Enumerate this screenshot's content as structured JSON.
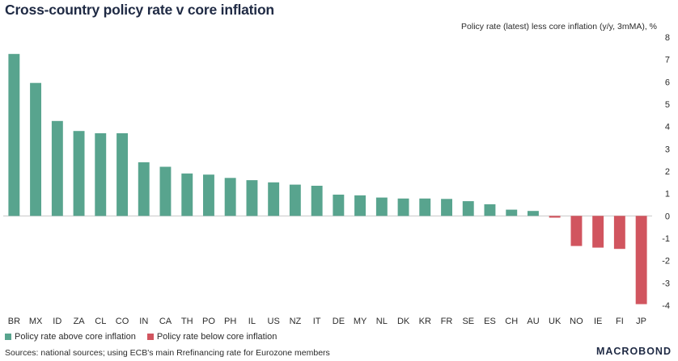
{
  "header": {
    "title": "Cross-country policy rate v core inflation",
    "subtitle": "Policy rate (latest) less core inflation (y/y, 3mMA), %"
  },
  "legend": {
    "above_label": "Policy rate above core inflation",
    "below_label": "Policy rate below core inflation"
  },
  "footer": {
    "source": "Sources: national sources; using ECB's main Rrefinancing rate for Eurozone members",
    "brand": "MACROBOND"
  },
  "colors": {
    "positive": "#58a48e",
    "negative": "#d1555f",
    "grid": "#c8c8c8"
  },
  "chart_data": {
    "type": "bar",
    "title": "Cross-country policy rate v core inflation",
    "subtitle": "Policy rate (latest) less core inflation (y/y, 3mMA), %",
    "categories": [
      "BR",
      "MX",
      "ID",
      "ZA",
      "CL",
      "CO",
      "IN",
      "CA",
      "TH",
      "PO",
      "PH",
      "IL",
      "US",
      "NZ",
      "IT",
      "DE",
      "MY",
      "NL",
      "DK",
      "KR",
      "FR",
      "SE",
      "ES",
      "CH",
      "AU",
      "UK",
      "NO",
      "IE",
      "FI",
      "JP"
    ],
    "values": [
      7.25,
      5.95,
      4.25,
      3.8,
      3.7,
      3.7,
      2.4,
      2.2,
      1.9,
      1.85,
      1.7,
      1.6,
      1.5,
      1.4,
      1.35,
      0.95,
      0.92,
      0.82,
      0.78,
      0.78,
      0.76,
      0.66,
      0.52,
      0.28,
      0.22,
      -0.08,
      -1.35,
      -1.42,
      -1.48,
      -3.95
    ],
    "ylim": [
      -4,
      8
    ],
    "yticks": [
      -4,
      -3,
      -2,
      -1,
      0,
      1,
      2,
      3,
      4,
      5,
      6,
      7,
      8
    ],
    "axis_side": "right",
    "grid": false,
    "legend_position": "bottom-left"
  }
}
